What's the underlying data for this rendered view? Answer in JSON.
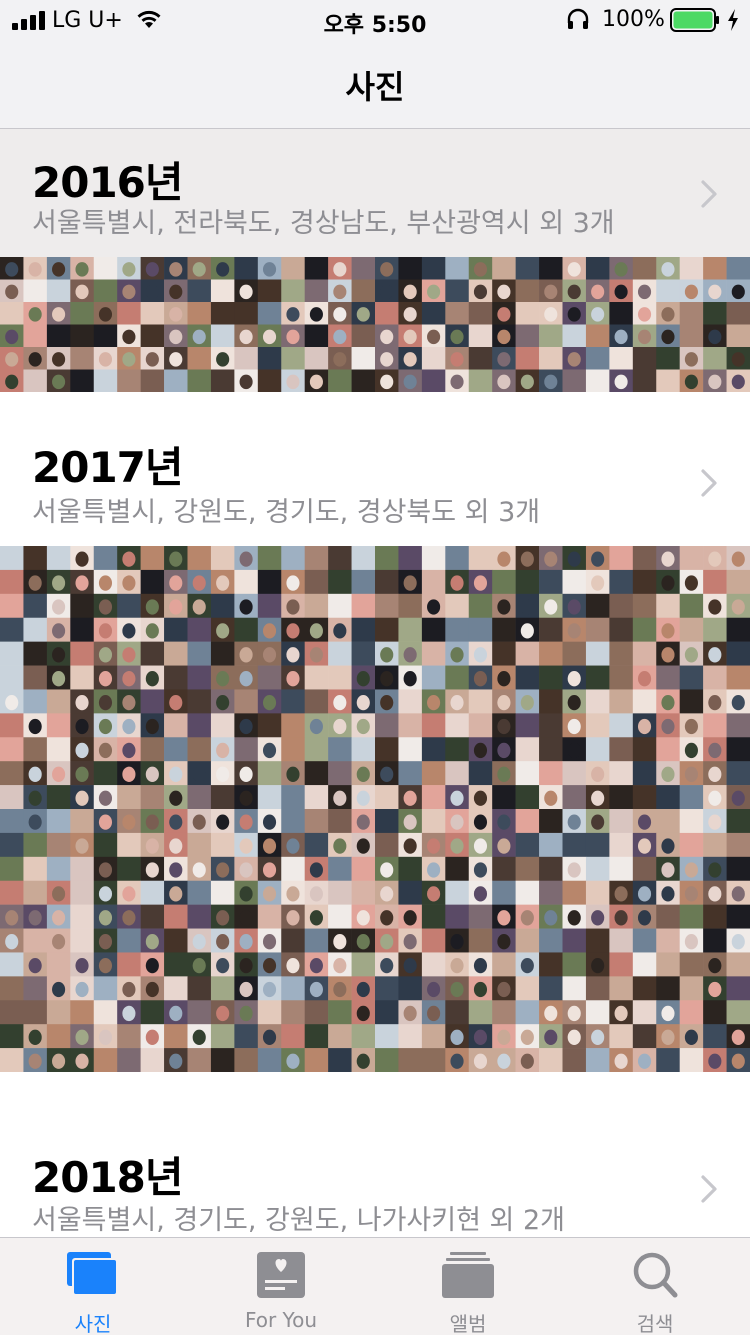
{
  "status_bar": {
    "carrier": "LG U+",
    "time": "오후 5:50",
    "battery": "100%",
    "battery_level": 1.0,
    "colors": {
      "battery_fill": "#4cd964"
    }
  },
  "nav": {
    "title": "사진"
  },
  "sections": [
    {
      "year": "2016년",
      "places": "서울특별시, 전라북도, 경상남도, 부산광역시 외 3개"
    },
    {
      "year": "2017년",
      "places": "서울특별시, 강원도, 경기도, 경상북도 외 3개"
    },
    {
      "year": "2018년",
      "places": "서울특별시, 경기도, 강원도, 나가사키현 외 2개"
    }
  ],
  "tabs": [
    {
      "label": "사진",
      "icon": "photos-icon",
      "selected": true
    },
    {
      "label": "For You",
      "icon": "for-you-icon",
      "selected": false
    },
    {
      "label": "앨범",
      "icon": "albums-icon",
      "selected": false
    },
    {
      "label": "검색",
      "icon": "search-icon",
      "selected": false
    }
  ],
  "colors": {
    "accent": "#1a82fb",
    "inactive": "#8e8e93"
  }
}
